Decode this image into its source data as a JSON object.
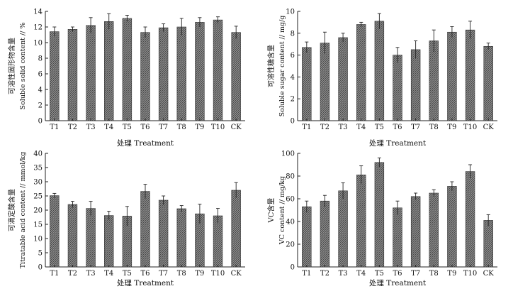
{
  "figure": {
    "background": "#ffffff",
    "bar_fill_color": "#9a9a9a",
    "axis_color": "#222222"
  },
  "chart_data": [
    {
      "type": "bar",
      "categories": [
        "T1",
        "T2",
        "T3",
        "T4",
        "T5",
        "T6",
        "T7",
        "T8",
        "T9",
        "T10",
        "CK"
      ],
      "values": [
        11.4,
        11.7,
        12.2,
        12.7,
        13.1,
        11.3,
        11.9,
        12.0,
        12.6,
        12.9,
        11.3
      ],
      "errors": [
        0.6,
        0.3,
        1.0,
        1.0,
        0.4,
        0.7,
        0.5,
        1.1,
        0.6,
        0.4,
        0.8
      ],
      "xlabel": "处理 Treatment",
      "ylabel_cn": "可溶性固形物含量",
      "ylabel_en": "Soluble solid content // %",
      "ylim": [
        0,
        14
      ],
      "yticks": [
        0,
        2,
        4,
        6,
        8,
        10,
        12,
        14
      ],
      "grid": false
    },
    {
      "type": "bar",
      "categories": [
        "T1",
        "T2",
        "T3",
        "T4",
        "T5",
        "T6",
        "T7",
        "T8",
        "T9",
        "T10",
        "CK"
      ],
      "values": [
        6.7,
        7.1,
        7.6,
        8.8,
        9.1,
        6.0,
        6.5,
        7.3,
        8.1,
        8.3,
        6.8
      ],
      "errors": [
        0.5,
        1.0,
        0.4,
        0.2,
        0.7,
        0.7,
        0.8,
        1.0,
        0.5,
        0.8,
        0.3
      ],
      "xlabel": "处理 Treatment",
      "ylabel_cn": "可溶性糖含量",
      "ylabel_en": "Soluble sugar content // mg/g",
      "ylim": [
        0,
        10
      ],
      "yticks": [
        0,
        2,
        4,
        6,
        8,
        10
      ],
      "grid": false
    },
    {
      "type": "bar",
      "categories": [
        "T1",
        "T2",
        "T3",
        "T4",
        "T5",
        "T6",
        "T7",
        "T8",
        "T9",
        "T10",
        "CK"
      ],
      "values": [
        25.1,
        22.0,
        20.6,
        18.1,
        17.9,
        26.6,
        23.5,
        20.5,
        18.7,
        18.0,
        27.0
      ],
      "errors": [
        0.8,
        1.1,
        2.5,
        1.5,
        3.4,
        2.5,
        1.5,
        1.1,
        3.4,
        2.6,
        2.7
      ],
      "xlabel": "处理 Treatment",
      "ylabel_cn": "可滴定酸含量",
      "ylabel_en": "Titratable acid content // mmol/kg",
      "ylim": [
        0,
        40
      ],
      "yticks": [
        0,
        5,
        10,
        15,
        20,
        25,
        30,
        35,
        40
      ],
      "grid": false
    },
    {
      "type": "bar",
      "categories": [
        "T1",
        "T2",
        "T3",
        "T4",
        "T5",
        "T6",
        "T7",
        "T8",
        "T9",
        "T10",
        "CK"
      ],
      "values": [
        53,
        58,
        67,
        81,
        92,
        52,
        62,
        65,
        71,
        84,
        41
      ],
      "errors": [
        5,
        5,
        7,
        8,
        4,
        6,
        3,
        3,
        4,
        6,
        5
      ],
      "xlabel": "处理 Treatment",
      "ylabel_cn": "VC含量",
      "ylabel_en": "VC content // mg/kg",
      "ylim": [
        0,
        100
      ],
      "yticks": [
        0,
        20,
        40,
        60,
        80,
        100
      ],
      "grid": false
    }
  ]
}
